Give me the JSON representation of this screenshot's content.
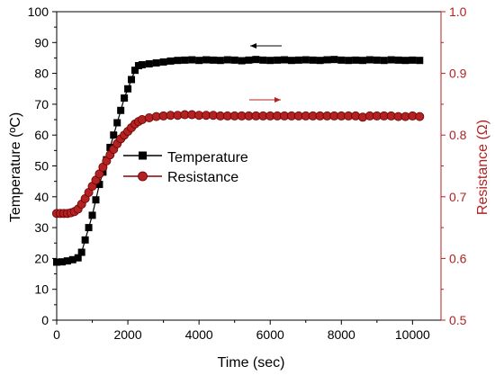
{
  "chart_data": {
    "type": "line",
    "title": "",
    "xlabel": "Time (sec)",
    "ylabel": "Temperature (ºC)",
    "y2label": "Resistance (Ω)",
    "xlim": [
      0,
      10800
    ],
    "ylim": [
      0,
      100
    ],
    "y2lim": [
      0.5,
      1.0
    ],
    "xticks": [
      "0",
      "2000",
      "4000",
      "6000",
      "8000",
      "10000"
    ],
    "yticks": [
      "0",
      "10",
      "20",
      "30",
      "40",
      "50",
      "60",
      "70",
      "80",
      "90",
      "100"
    ],
    "y2ticks": [
      "0.5",
      "0.6",
      "0.7",
      "0.8",
      "0.9",
      "1.0"
    ],
    "grid": false,
    "legend_position": "center-left",
    "right_axis_color": "#b22222",
    "series": [
      {
        "name": "Temperature",
        "axis": "left",
        "color": "#000000",
        "marker": "square",
        "x": [
          0,
          150,
          300,
          450,
          600,
          700,
          800,
          900,
          1000,
          1100,
          1200,
          1300,
          1400,
          1500,
          1600,
          1700,
          1800,
          1900,
          2000,
          2100,
          2200,
          2300,
          2400,
          2600,
          2800,
          3000,
          3200,
          3400,
          3600,
          3800,
          4000,
          4200,
          4400,
          4600,
          4800,
          5000,
          5200,
          5400,
          5600,
          5800,
          6000,
          6200,
          6400,
          6600,
          6800,
          7000,
          7200,
          7400,
          7600,
          7800,
          8000,
          8200,
          8400,
          8600,
          8800,
          9000,
          9200,
          9400,
          9600,
          9800,
          10000,
          10200
        ],
        "values": [
          18.8,
          18.9,
          19.2,
          19.6,
          20.2,
          22,
          26,
          30,
          34,
          39,
          44,
          48,
          52,
          56,
          60,
          64,
          68,
          72,
          75,
          78,
          81,
          82.5,
          82.8,
          83.1,
          83.4,
          83.7,
          84,
          84.2,
          84.3,
          84.4,
          84.2,
          84.4,
          84.3,
          84.2,
          84.4,
          84.3,
          84.1,
          84.3,
          84.5,
          84.3,
          84.2,
          84.3,
          84.4,
          84.2,
          84.3,
          84.4,
          84.3,
          84.2,
          84.4,
          84.5,
          84.3,
          84.2,
          84.3,
          84.2,
          84.4,
          84.3,
          84.2,
          84.4,
          84.3,
          84.2,
          84.3,
          84.2
        ]
      },
      {
        "name": "Resistance",
        "axis": "right",
        "color": "#8b0000",
        "marker": "circle",
        "x": [
          0,
          100,
          200,
          300,
          400,
          500,
          600,
          700,
          800,
          900,
          1000,
          1100,
          1200,
          1300,
          1400,
          1500,
          1600,
          1700,
          1800,
          1900,
          2000,
          2100,
          2200,
          2300,
          2400,
          2600,
          2800,
          3000,
          3200,
          3400,
          3600,
          3800,
          4000,
          4200,
          4400,
          4600,
          4800,
          5000,
          5200,
          5400,
          5600,
          5800,
          6000,
          6200,
          6400,
          6600,
          6800,
          7000,
          7200,
          7400,
          7600,
          7800,
          8000,
          8200,
          8400,
          8600,
          8800,
          9000,
          9200,
          9400,
          9600,
          9800,
          10000,
          10200
        ],
        "values": [
          0.673,
          0.673,
          0.673,
          0.673,
          0.674,
          0.676,
          0.68,
          0.688,
          0.697,
          0.707,
          0.717,
          0.727,
          0.737,
          0.748,
          0.758,
          0.768,
          0.777,
          0.786,
          0.794,
          0.8,
          0.806,
          0.812,
          0.818,
          0.822,
          0.825,
          0.828,
          0.83,
          0.831,
          0.832,
          0.832,
          0.833,
          0.833,
          0.832,
          0.832,
          0.832,
          0.831,
          0.831,
          0.831,
          0.831,
          0.831,
          0.831,
          0.831,
          0.831,
          0.831,
          0.831,
          0.831,
          0.831,
          0.831,
          0.831,
          0.831,
          0.831,
          0.831,
          0.831,
          0.831,
          0.831,
          0.829,
          0.831,
          0.831,
          0.831,
          0.831,
          0.83,
          0.83,
          0.831,
          0.83
        ]
      }
    ]
  }
}
